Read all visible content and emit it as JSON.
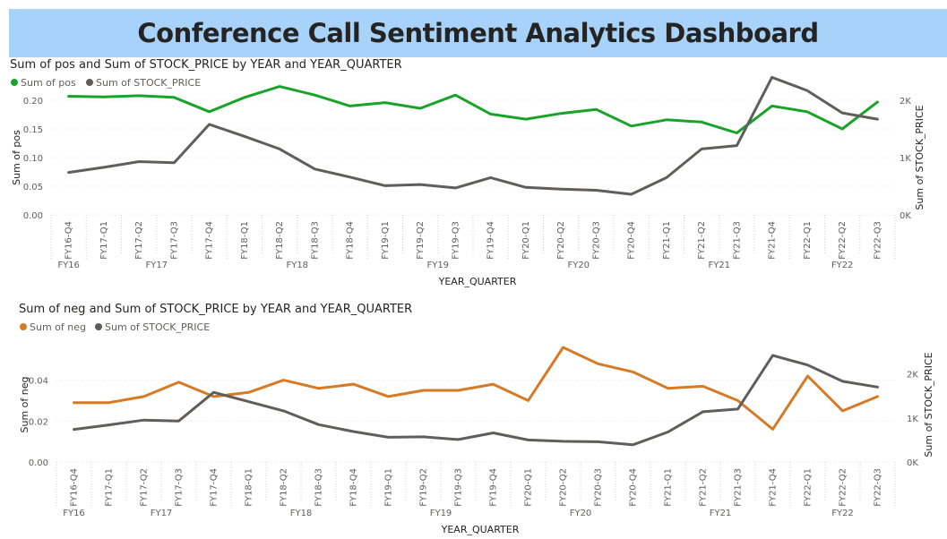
{
  "dashboard_title": "Conference Call Sentiment Analytics Dashboard",
  "colors": {
    "banner": "#a7d3fb",
    "pos": "#1aa32a",
    "neg": "#d67a26",
    "stock": "#605e5c"
  },
  "chart_data": [
    {
      "type": "line",
      "title": "Sum of pos and Sum of STOCK_PRICE by YEAR and YEAR_QUARTER",
      "xlabel": "YEAR_QUARTER",
      "ylabel": "Sum of pos",
      "ylabel_right": "Sum of STOCK_PRICE",
      "legend_position": "top-left",
      "categories": [
        "FY16-Q4",
        "FY17-Q1",
        "FY17-Q2",
        "FY17-Q3",
        "FY17-Q4",
        "FY18-Q1",
        "FY18-Q2",
        "FY18-Q3",
        "FY18-Q4",
        "FY19-Q1",
        "FY19-Q2",
        "FY19-Q3",
        "FY19-Q4",
        "FY20-Q1",
        "FY20-Q2",
        "FY20-Q3",
        "FY20-Q4",
        "FY21-Q1",
        "FY21-Q2",
        "FY21-Q3",
        "FY21-Q4",
        "FY22-Q1",
        "FY22-Q2",
        "FY22-Q3"
      ],
      "years": [
        {
          "label": "FY16",
          "start": 0,
          "end": 0
        },
        {
          "label": "FY17",
          "start": 1,
          "end": 4
        },
        {
          "label": "FY18",
          "start": 5,
          "end": 8
        },
        {
          "label": "FY19",
          "start": 9,
          "end": 12
        },
        {
          "label": "FY20",
          "start": 13,
          "end": 16
        },
        {
          "label": "FY21",
          "start": 17,
          "end": 20
        },
        {
          "label": "FY22",
          "start": 21,
          "end": 23
        }
      ],
      "y_left": {
        "min": 0,
        "max": 0.2,
        "ticks": [
          0,
          0.05,
          0.1,
          0.15,
          0.2
        ],
        "tick_labels": [
          "0.00",
          "0.05",
          "0.10",
          "0.15",
          "0.20"
        ]
      },
      "y_right": {
        "min": 0,
        "max": 2000,
        "ticks": [
          0,
          1000,
          2000
        ],
        "tick_labels": [
          "0K",
          "1K",
          "2K"
        ]
      },
      "series": [
        {
          "name": "Sum of pos",
          "axis": "left",
          "color": "#1aa32a",
          "values": [
            0.207,
            0.206,
            0.208,
            0.205,
            0.18,
            0.205,
            0.224,
            0.209,
            0.19,
            0.196,
            0.186,
            0.209,
            0.176,
            0.167,
            0.177,
            0.184,
            0.155,
            0.166,
            0.162,
            0.143,
            0.19,
            0.18,
            0.15,
            0.197
          ]
        },
        {
          "name": "Sum of STOCK_PRICE",
          "axis": "right",
          "color": "#605e5c",
          "values": [
            740,
            830,
            930,
            910,
            1580,
            1370,
            1150,
            800,
            660,
            510,
            530,
            470,
            650,
            480,
            450,
            430,
            360,
            650,
            1150,
            1210,
            2400,
            2170,
            1780,
            1670
          ]
        }
      ]
    },
    {
      "type": "line",
      "title": "Sum of neg and Sum of STOCK_PRICE by YEAR and YEAR_QUARTER",
      "xlabel": "YEAR_QUARTER",
      "ylabel": "Sum of neg",
      "ylabel_right": "Sum of STOCK_PRICE",
      "legend_position": "top-left",
      "categories": [
        "FY16-Q4",
        "FY17-Q1",
        "FY17-Q2",
        "FY17-Q3",
        "FY17-Q4",
        "FY18-Q1",
        "FY18-Q2",
        "FY18-Q3",
        "FY18-Q4",
        "FY19-Q1",
        "FY19-Q2",
        "FY19-Q3",
        "FY19-Q4",
        "FY20-Q1",
        "FY20-Q2",
        "FY20-Q3",
        "FY20-Q4",
        "FY21-Q1",
        "FY21-Q2",
        "FY21-Q3",
        "FY21-Q4",
        "FY22-Q1",
        "FY22-Q2",
        "FY22-Q3"
      ],
      "years": [
        {
          "label": "FY16",
          "start": 0,
          "end": 0
        },
        {
          "label": "FY17",
          "start": 1,
          "end": 4
        },
        {
          "label": "FY18",
          "start": 5,
          "end": 8
        },
        {
          "label": "FY19",
          "start": 9,
          "end": 12
        },
        {
          "label": "FY20",
          "start": 13,
          "end": 16
        },
        {
          "label": "FY21",
          "start": 17,
          "end": 20
        },
        {
          "label": "FY22",
          "start": 21,
          "end": 23
        }
      ],
      "y_left": {
        "min": 0,
        "max": 0.056,
        "ticks": [
          0,
          0.02,
          0.04
        ],
        "tick_labels": [
          "0.00",
          "0.02",
          "0.04"
        ]
      },
      "y_right": {
        "min": 0,
        "max": 2600,
        "ticks": [
          0,
          1000,
          2000
        ],
        "tick_labels": [
          "0K",
          "1K",
          "2K"
        ]
      },
      "series": [
        {
          "name": "Sum of neg",
          "axis": "left",
          "color": "#d67a26",
          "values": [
            0.029,
            0.029,
            0.032,
            0.039,
            0.032,
            0.034,
            0.04,
            0.036,
            0.038,
            0.032,
            0.035,
            0.035,
            0.038,
            0.03,
            0.056,
            0.048,
            0.044,
            0.036,
            0.037,
            0.03,
            0.016,
            0.042,
            0.025,
            0.032
          ]
        },
        {
          "name": "Sum of STOCK_PRICE",
          "axis": "right",
          "color": "#605e5c",
          "values": [
            740,
            840,
            950,
            930,
            1580,
            1370,
            1160,
            850,
            690,
            560,
            570,
            510,
            660,
            500,
            470,
            460,
            390,
            680,
            1140,
            1200,
            2420,
            2200,
            1830,
            1700
          ]
        }
      ]
    }
  ]
}
